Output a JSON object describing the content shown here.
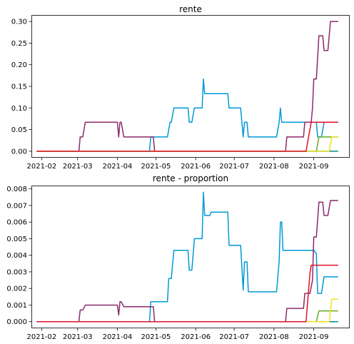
{
  "chart_data": [
    {
      "type": "line",
      "title": "rente",
      "xlabel": "",
      "ylabel": "",
      "x_ticks": [
        "2021-02",
        "2021-03",
        "2021-04",
        "2021-05",
        "2021-06",
        "2021-07",
        "2021-08",
        "2021-09"
      ],
      "xlim": [
        "2021-01-24",
        "2021-09-29"
      ],
      "ylim": [
        -0.015,
        0.315
      ],
      "y_ticks": [
        0.0,
        0.05,
        0.1,
        0.15,
        0.2,
        0.25,
        0.3
      ],
      "y_tick_labels": [
        "0.00",
        "0.05",
        "0.10",
        "0.15",
        "0.20",
        "0.25",
        "0.30"
      ],
      "grid": false,
      "series": [
        {
          "color": "#008b8b",
          "points": [
            [
              "2021-01-28",
              0
            ],
            [
              "2021-09-20",
              0
            ]
          ]
        },
        {
          "color": "#009ad6",
          "points": [
            [
              "2021-01-28",
              0
            ],
            [
              "2021-04-26",
              0
            ],
            [
              "2021-04-27",
              0.033
            ],
            [
              "2021-05-10",
              0.033
            ],
            [
              "2021-05-12",
              0.067
            ],
            [
              "2021-05-13",
              0.067
            ],
            [
              "2021-05-15",
              0.1
            ],
            [
              "2021-05-26",
              0.1
            ],
            [
              "2021-05-27",
              0.067
            ],
            [
              "2021-05-29",
              0.067
            ],
            [
              "2021-05-31",
              0.1
            ],
            [
              "2021-06-06",
              0.1
            ],
            [
              "2021-06-07",
              0.167
            ],
            [
              "2021-06-08",
              0.133
            ],
            [
              "2021-06-26",
              0.133
            ],
            [
              "2021-06-27",
              0.1
            ],
            [
              "2021-07-06",
              0.1
            ],
            [
              "2021-07-08",
              0.033
            ],
            [
              "2021-07-09",
              0.067
            ],
            [
              "2021-07-11",
              0.067
            ],
            [
              "2021-07-12",
              0.033
            ],
            [
              "2021-08-03",
              0.033
            ],
            [
              "2021-08-05",
              0.067
            ],
            [
              "2021-08-06",
              0.1
            ],
            [
              "2021-08-07",
              0.067
            ],
            [
              "2021-09-03",
              0.067
            ],
            [
              "2021-09-04",
              0.033
            ],
            [
              "2021-09-07",
              0.033
            ],
            [
              "2021-09-09",
              0.067
            ],
            [
              "2021-09-20",
              0.067
            ]
          ]
        },
        {
          "color": "#8b2a6a",
          "points": [
            [
              "2021-01-28",
              0
            ],
            [
              "2021-03-02",
              0
            ],
            [
              "2021-03-03",
              0.033
            ],
            [
              "2021-03-05",
              0.033
            ],
            [
              "2021-03-07",
              0.067
            ],
            [
              "2021-04-01",
              0.067
            ],
            [
              "2021-04-02",
              0.033
            ],
            [
              "2021-04-03",
              0.067
            ],
            [
              "2021-04-04",
              0.067
            ],
            [
              "2021-04-06",
              0.033
            ],
            [
              "2021-04-29",
              0.033
            ],
            [
              "2021-04-30",
              0
            ],
            [
              "2021-08-10",
              0
            ],
            [
              "2021-08-11",
              0.033
            ],
            [
              "2021-08-24",
              0.033
            ],
            [
              "2021-08-25",
              0.067
            ],
            [
              "2021-08-30",
              0.067
            ],
            [
              "2021-08-31",
              0.1
            ],
            [
              "2021-09-01",
              0.167
            ],
            [
              "2021-09-03",
              0.167
            ],
            [
              "2021-09-05",
              0.267
            ],
            [
              "2021-09-08",
              0.267
            ],
            [
              "2021-09-09",
              0.233
            ],
            [
              "2021-09-12",
              0.233
            ],
            [
              "2021-09-14",
              0.3
            ],
            [
              "2021-09-20",
              0.3
            ]
          ]
        },
        {
          "color": "#66aa22",
          "points": [
            [
              "2021-01-28",
              0
            ],
            [
              "2021-09-03",
              0
            ],
            [
              "2021-09-05",
              0.033
            ],
            [
              "2021-09-20",
              0.033
            ]
          ]
        },
        {
          "color": "#f0e020",
          "points": [
            [
              "2021-01-28",
              0
            ],
            [
              "2021-09-13",
              0
            ],
            [
              "2021-09-15",
              0.033
            ],
            [
              "2021-09-20",
              0.033
            ]
          ]
        },
        {
          "color": "#e0102a",
          "points": [
            [
              "2021-01-28",
              0
            ],
            [
              "2021-08-26",
              0
            ],
            [
              "2021-08-30",
              0.067
            ],
            [
              "2021-09-20",
              0.067
            ]
          ]
        }
      ]
    },
    {
      "type": "line",
      "title": "rente - proportion",
      "xlabel": "",
      "ylabel": "",
      "x_ticks": [
        "2021-02",
        "2021-03",
        "2021-04",
        "2021-05",
        "2021-06",
        "2021-07",
        "2021-08",
        "2021-09"
      ],
      "xlim": [
        "2021-01-24",
        "2021-09-29"
      ],
      "ylim": [
        -0.0004,
        0.0082
      ],
      "y_ticks": [
        0,
        0.001,
        0.002,
        0.003,
        0.004,
        0.005,
        0.006,
        0.007,
        0.008
      ],
      "y_tick_labels": [
        "0.000",
        "0.001",
        "0.002",
        "0.003",
        "0.004",
        "0.005",
        "0.006",
        "0.007",
        "0.008"
      ],
      "grid": false,
      "series": [
        {
          "color": "#008b8b",
          "points": [
            [
              "2021-01-28",
              0
            ],
            [
              "2021-09-20",
              0
            ]
          ]
        },
        {
          "color": "#009ad6",
          "points": [
            [
              "2021-01-28",
              0
            ],
            [
              "2021-04-26",
              0
            ],
            [
              "2021-04-27",
              0.0012
            ],
            [
              "2021-05-10",
              0.0012
            ],
            [
              "2021-05-11",
              0.0026
            ],
            [
              "2021-05-13",
              0.0026
            ],
            [
              "2021-05-15",
              0.0043
            ],
            [
              "2021-05-26",
              0.0043
            ],
            [
              "2021-05-27",
              0.0031
            ],
            [
              "2021-05-29",
              0.0031
            ],
            [
              "2021-05-31",
              0.005
            ],
            [
              "2021-06-06",
              0.005
            ],
            [
              "2021-06-07",
              0.0078
            ],
            [
              "2021-06-08",
              0.0064
            ],
            [
              "2021-06-12",
              0.0064
            ],
            [
              "2021-06-13",
              0.0066
            ],
            [
              "2021-06-26",
              0.0066
            ],
            [
              "2021-06-27",
              0.0046
            ],
            [
              "2021-07-06",
              0.0046
            ],
            [
              "2021-07-08",
              0.0019
            ],
            [
              "2021-07-09",
              0.0036
            ],
            [
              "2021-07-11",
              0.0036
            ],
            [
              "2021-07-12",
              0.0018
            ],
            [
              "2021-08-03",
              0.0018
            ],
            [
              "2021-08-05",
              0.0036
            ],
            [
              "2021-08-06",
              0.006
            ],
            [
              "2021-08-07",
              0.006
            ],
            [
              "2021-08-08",
              0.0043
            ],
            [
              "2021-09-01",
              0.0043
            ],
            [
              "2021-09-03",
              0.0041
            ],
            [
              "2021-09-04",
              0.0017
            ],
            [
              "2021-09-07",
              0.0017
            ],
            [
              "2021-09-09",
              0.0027
            ],
            [
              "2021-09-20",
              0.0027
            ]
          ]
        },
        {
          "color": "#8b2a6a",
          "points": [
            [
              "2021-01-28",
              0
            ],
            [
              "2021-03-02",
              0
            ],
            [
              "2021-03-03",
              0.0007
            ],
            [
              "2021-03-05",
              0.0007
            ],
            [
              "2021-03-07",
              0.001
            ],
            [
              "2021-04-01",
              0.001
            ],
            [
              "2021-04-02",
              0.0004
            ],
            [
              "2021-04-03",
              0.0012
            ],
            [
              "2021-04-04",
              0.0012
            ],
            [
              "2021-04-06",
              0.0009
            ],
            [
              "2021-04-29",
              0.0009
            ],
            [
              "2021-04-30",
              0
            ],
            [
              "2021-08-10",
              0
            ],
            [
              "2021-08-11",
              0.0008
            ],
            [
              "2021-08-24",
              0.0008
            ],
            [
              "2021-08-25",
              0.0017
            ],
            [
              "2021-08-29",
              0.0017
            ],
            [
              "2021-08-31",
              0.0025
            ],
            [
              "2021-09-01",
              0.0051
            ],
            [
              "2021-09-03",
              0.0051
            ],
            [
              "2021-09-05",
              0.0072
            ],
            [
              "2021-09-08",
              0.0072
            ],
            [
              "2021-09-09",
              0.0064
            ],
            [
              "2021-09-12",
              0.0064
            ],
            [
              "2021-09-14",
              0.0073
            ],
            [
              "2021-09-20",
              0.0073
            ]
          ]
        },
        {
          "color": "#66aa22",
          "points": [
            [
              "2021-01-28",
              0
            ],
            [
              "2021-09-03",
              0
            ],
            [
              "2021-09-05",
              0.00065
            ],
            [
              "2021-09-20",
              0.00065
            ]
          ]
        },
        {
          "color": "#f0e020",
          "points": [
            [
              "2021-01-28",
              0
            ],
            [
              "2021-09-13",
              0
            ],
            [
              "2021-09-15",
              0.00135
            ],
            [
              "2021-09-20",
              0.00135
            ]
          ]
        },
        {
          "color": "#e0102a",
          "points": [
            [
              "2021-01-28",
              0
            ],
            [
              "2021-08-26",
              0
            ],
            [
              "2021-08-29",
              0.0029
            ],
            [
              "2021-08-30",
              0.0034
            ],
            [
              "2021-09-20",
              0.0034
            ]
          ]
        }
      ]
    }
  ]
}
